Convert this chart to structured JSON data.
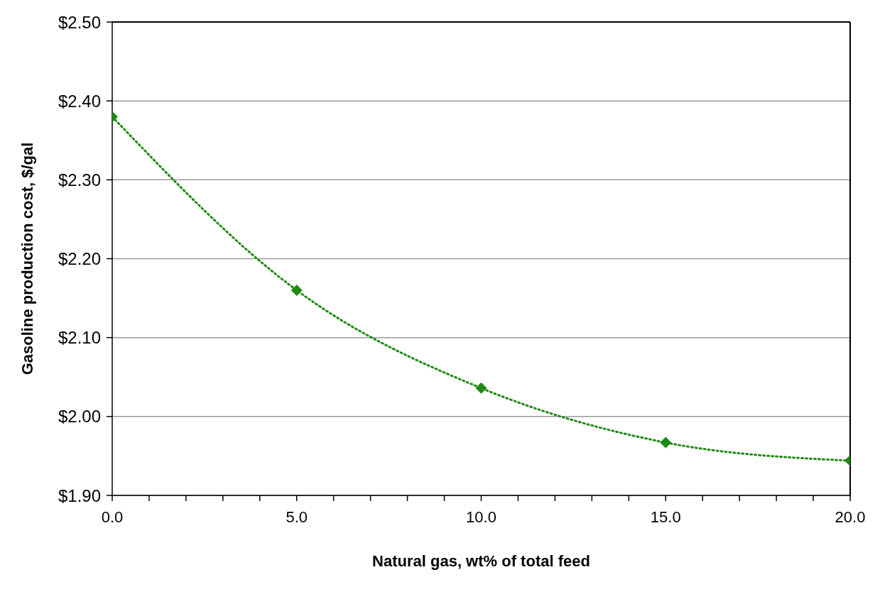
{
  "chart_data": {
    "type": "line",
    "xlabel": "Natural gas, wt% of total feed",
    "ylabel": "Gasoline production cost, $/gal",
    "x": [
      0,
      5,
      10,
      15,
      20
    ],
    "series": [
      {
        "color": "#1e8a12",
        "values": [
          2.38,
          2.16,
          2.036,
          1.967,
          1.944
        ]
      }
    ],
    "xlim": [
      0,
      20
    ],
    "xticks": [
      {
        "value": 0,
        "label": "0.0"
      },
      {
        "value": 1,
        "label": null
      },
      {
        "value": 2,
        "label": null
      },
      {
        "value": 3,
        "label": null
      },
      {
        "value": 4,
        "label": null
      },
      {
        "value": 5,
        "label": "5.0"
      },
      {
        "value": 6,
        "label": null
      },
      {
        "value": 7,
        "label": null
      },
      {
        "value": 8,
        "label": null
      },
      {
        "value": 9,
        "label": null
      },
      {
        "value": 10,
        "label": "10.0"
      },
      {
        "value": 11,
        "label": null
      },
      {
        "value": 12,
        "label": null
      },
      {
        "value": 13,
        "label": null
      },
      {
        "value": 14,
        "label": null
      },
      {
        "value": 15,
        "label": "15.0"
      },
      {
        "value": 16,
        "label": null
      },
      {
        "value": 17,
        "label": null
      },
      {
        "value": 18,
        "label": null
      },
      {
        "value": 19,
        "label": null
      },
      {
        "value": 20,
        "label": "20.0"
      }
    ],
    "ylim": [
      1.9,
      2.5
    ],
    "yticks": [
      {
        "value": 1.9,
        "label": "$1.90"
      },
      {
        "value": 2.0,
        "label": "$2.00"
      },
      {
        "value": 2.1,
        "label": "$2.10"
      },
      {
        "value": 2.2,
        "label": "$2.20"
      },
      {
        "value": 2.3,
        "label": "$2.30"
      },
      {
        "value": 2.4,
        "label": "$2.40"
      },
      {
        "value": 2.5,
        "label": "$2.50"
      }
    ],
    "grid": "y",
    "marker": "diamond",
    "line_style": "dotted",
    "legend": false
  }
}
